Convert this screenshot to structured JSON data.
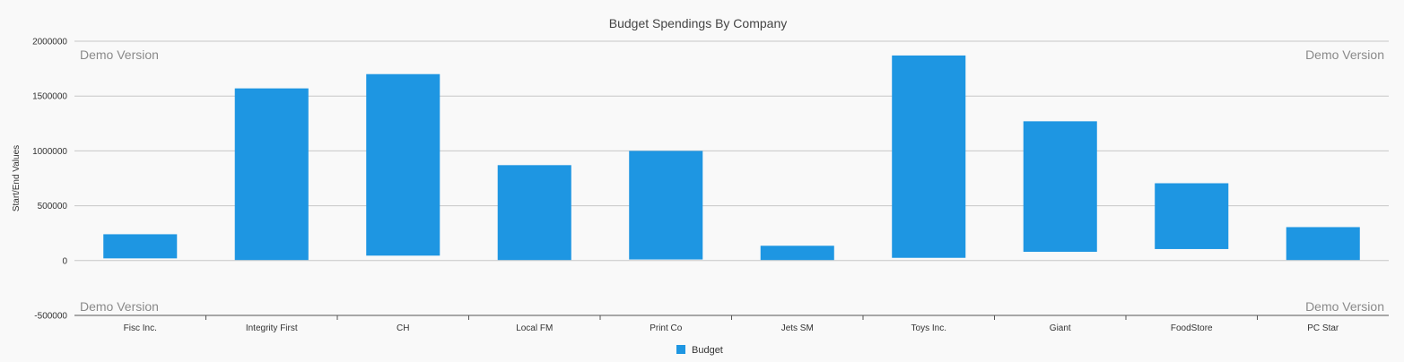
{
  "chart_data": {
    "type": "bar",
    "subtype": "floating range bars (start/end values)",
    "title": "Budget Spendings By Company",
    "ylabel": "Start/End Values",
    "xlabel": "",
    "ylim": [
      -500000,
      2000000
    ],
    "yticks": [
      2000000,
      1500000,
      1000000,
      500000,
      0,
      -500000
    ],
    "grid": true,
    "legend_position": "bottom-center",
    "categories": [
      "Fisc Inc.",
      "Integrity First",
      "CH",
      "Local FM",
      "Print Co",
      "Jets SM",
      "Toys Inc.",
      "Giant",
      "FoodStore",
      "PC Star"
    ],
    "series": [
      {
        "name": "Budget",
        "color": "#1e96e2",
        "start": [
          20000,
          5000,
          45000,
          5000,
          10000,
          5000,
          25000,
          80000,
          105000,
          5000
        ],
        "end": [
          240000,
          1570000,
          1700000,
          870000,
          1000000,
          135000,
          1870000,
          1270000,
          705000,
          305000
        ]
      }
    ]
  },
  "watermark_text": "Demo Version",
  "colors": {
    "bar": "#1e96e2",
    "grid": "#c8c8c8",
    "axis": "#555555",
    "background": "#f9f9f9"
  }
}
